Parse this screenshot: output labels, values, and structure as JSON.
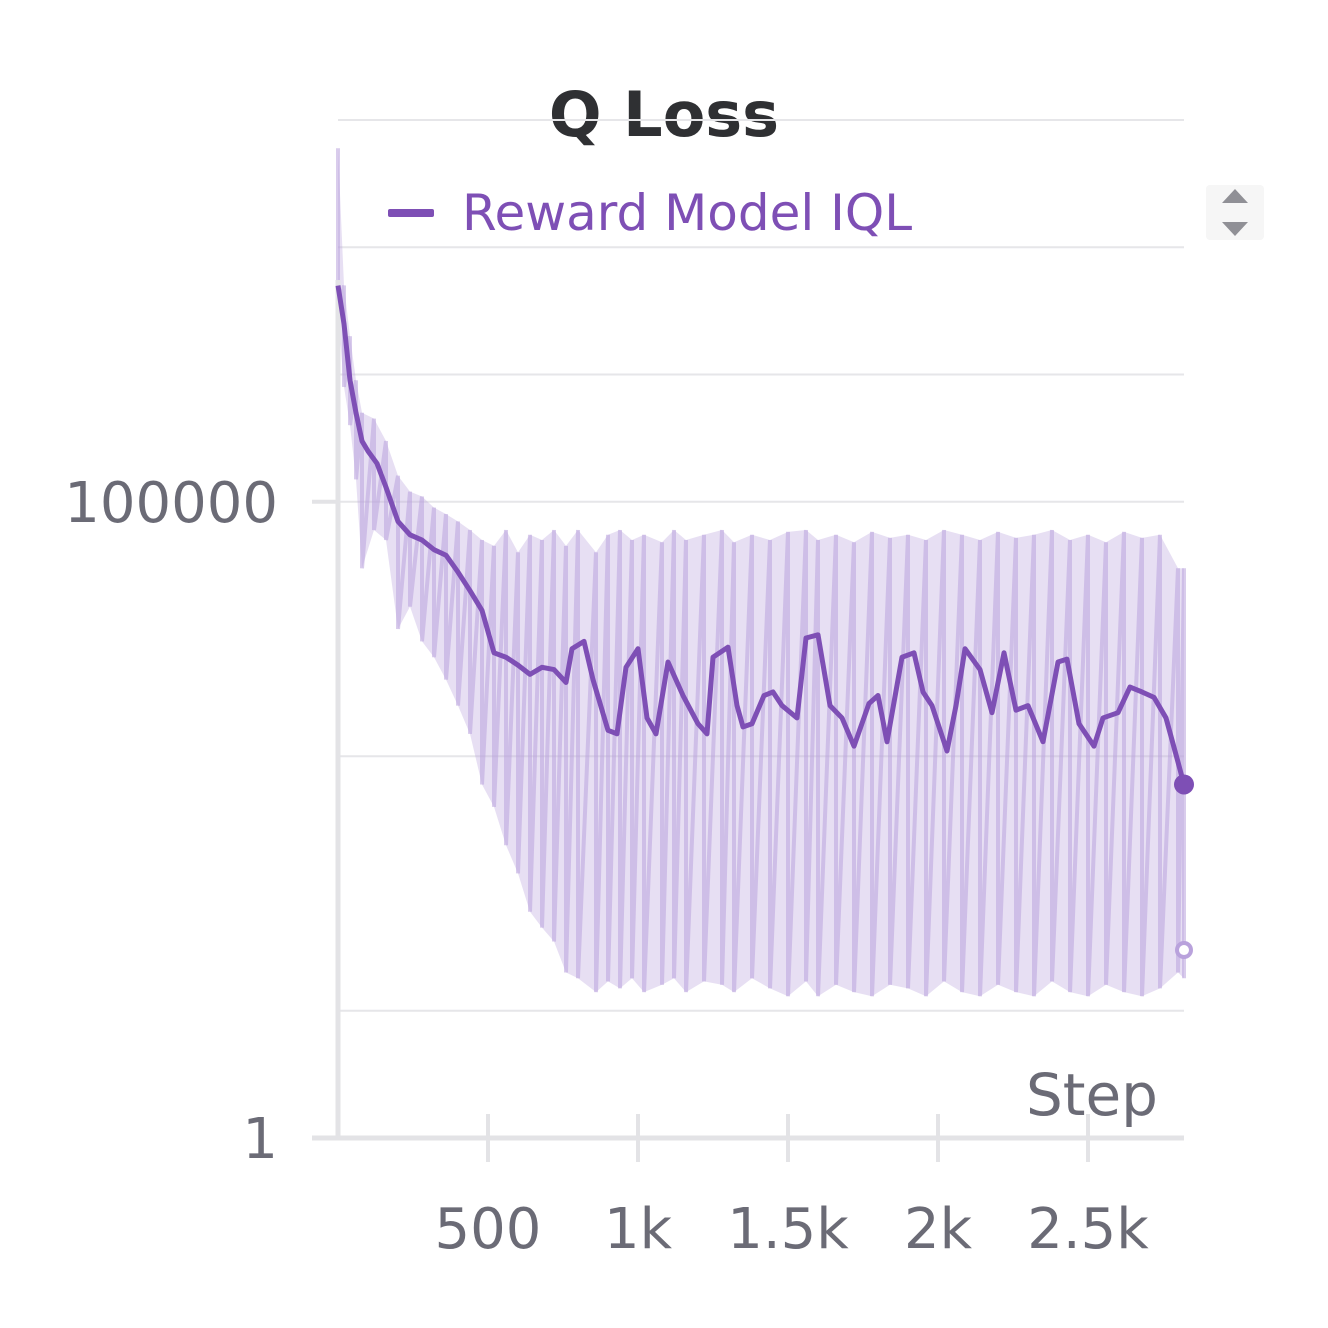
{
  "chart_data": {
    "type": "line",
    "title": "Q Loss",
    "xlabel": "Step",
    "ylabel": "",
    "yscale": "log",
    "xlim": [
      0,
      2820
    ],
    "ylim": [
      1,
      100000000
    ],
    "x_ticks": [
      {
        "value": 500,
        "label": "500"
      },
      {
        "value": 1000,
        "label": "1k"
      },
      {
        "value": 1500,
        "label": "1.5k"
      },
      {
        "value": 2000,
        "label": "2k"
      },
      {
        "value": 2500,
        "label": "2.5k"
      }
    ],
    "y_ticks": [
      {
        "value": 1,
        "label": "1"
      },
      {
        "value": 100000,
        "label": "100000"
      }
    ],
    "gridlines_log10": [
      1,
      3,
      5,
      6,
      7,
      8
    ],
    "legend": {
      "position": "top",
      "entries": [
        "Reward Model IQL"
      ]
    },
    "series": [
      {
        "name": "Reward Model IQL",
        "color": "#7e4fb5",
        "raw_color": "#b9a2dc",
        "smoothed": [
          {
            "x": 0,
            "y": 5000000
          },
          {
            "x": 20,
            "y": 2500000
          },
          {
            "x": 40,
            "y": 900000
          },
          {
            "x": 60,
            "y": 500000
          },
          {
            "x": 80,
            "y": 300000
          },
          {
            "x": 100,
            "y": 250000
          },
          {
            "x": 130,
            "y": 200000
          },
          {
            "x": 160,
            "y": 130000
          },
          {
            "x": 200,
            "y": 70000
          },
          {
            "x": 240,
            "y": 55000
          },
          {
            "x": 280,
            "y": 50000
          },
          {
            "x": 320,
            "y": 42000
          },
          {
            "x": 360,
            "y": 38000
          },
          {
            "x": 400,
            "y": 28000
          },
          {
            "x": 440,
            "y": 20000
          },
          {
            "x": 480,
            "y": 14000
          },
          {
            "x": 520,
            "y": 6500
          },
          {
            "x": 560,
            "y": 6000
          },
          {
            "x": 600,
            "y": 5200
          },
          {
            "x": 640,
            "y": 4400
          },
          {
            "x": 680,
            "y": 5000
          },
          {
            "x": 720,
            "y": 4800
          },
          {
            "x": 760,
            "y": 3800
          },
          {
            "x": 780,
            "y": 7000
          },
          {
            "x": 820,
            "y": 8000
          },
          {
            "x": 850,
            "y": 4000
          },
          {
            "x": 900,
            "y": 1600
          },
          {
            "x": 930,
            "y": 1500
          },
          {
            "x": 960,
            "y": 5000
          },
          {
            "x": 1000,
            "y": 7000
          },
          {
            "x": 1030,
            "y": 2000
          },
          {
            "x": 1060,
            "y": 1500
          },
          {
            "x": 1100,
            "y": 5500
          },
          {
            "x": 1150,
            "y": 3000
          },
          {
            "x": 1200,
            "y": 1800
          },
          {
            "x": 1230,
            "y": 1500
          },
          {
            "x": 1250,
            "y": 6000
          },
          {
            "x": 1300,
            "y": 7200
          },
          {
            "x": 1330,
            "y": 2500
          },
          {
            "x": 1350,
            "y": 1700
          },
          {
            "x": 1380,
            "y": 1800
          },
          {
            "x": 1420,
            "y": 3000
          },
          {
            "x": 1450,
            "y": 3200
          },
          {
            "x": 1480,
            "y": 2500
          },
          {
            "x": 1530,
            "y": 2000
          },
          {
            "x": 1560,
            "y": 8500
          },
          {
            "x": 1600,
            "y": 9000
          },
          {
            "x": 1640,
            "y": 2500
          },
          {
            "x": 1680,
            "y": 2000
          },
          {
            "x": 1720,
            "y": 1200
          },
          {
            "x": 1770,
            "y": 2600
          },
          {
            "x": 1800,
            "y": 3000
          },
          {
            "x": 1830,
            "y": 1300
          },
          {
            "x": 1880,
            "y": 6000
          },
          {
            "x": 1920,
            "y": 6500
          },
          {
            "x": 1950,
            "y": 3200
          },
          {
            "x": 1980,
            "y": 2500
          },
          {
            "x": 2030,
            "y": 1100
          },
          {
            "x": 2060,
            "y": 2500
          },
          {
            "x": 2090,
            "y": 7000
          },
          {
            "x": 2140,
            "y": 4800
          },
          {
            "x": 2180,
            "y": 2200
          },
          {
            "x": 2220,
            "y": 6500
          },
          {
            "x": 2260,
            "y": 2300
          },
          {
            "x": 2300,
            "y": 2500
          },
          {
            "x": 2350,
            "y": 1300
          },
          {
            "x": 2400,
            "y": 5500
          },
          {
            "x": 2430,
            "y": 5800
          },
          {
            "x": 2470,
            "y": 1800
          },
          {
            "x": 2520,
            "y": 1200
          },
          {
            "x": 2550,
            "y": 2000
          },
          {
            "x": 2600,
            "y": 2200
          },
          {
            "x": 2640,
            "y": 3500
          },
          {
            "x": 2680,
            "y": 3200
          },
          {
            "x": 2720,
            "y": 2900
          },
          {
            "x": 2760,
            "y": 2000
          },
          {
            "x": 2800,
            "y": 900
          },
          {
            "x": 2820,
            "y": 600
          }
        ],
        "raw_lower": [
          {
            "x": 0,
            "y": 3000000
          },
          {
            "x": 20,
            "y": 800000
          },
          {
            "x": 40,
            "y": 400000
          },
          {
            "x": 60,
            "y": 150000
          },
          {
            "x": 80,
            "y": 30000
          },
          {
            "x": 120,
            "y": 60000
          },
          {
            "x": 160,
            "y": 50000
          },
          {
            "x": 200,
            "y": 10000
          },
          {
            "x": 240,
            "y": 15000
          },
          {
            "x": 280,
            "y": 8000
          },
          {
            "x": 320,
            "y": 6000
          },
          {
            "x": 360,
            "y": 4000
          },
          {
            "x": 400,
            "y": 2500
          },
          {
            "x": 440,
            "y": 1500
          },
          {
            "x": 480,
            "y": 600
          },
          {
            "x": 520,
            "y": 400
          },
          {
            "x": 560,
            "y": 200
          },
          {
            "x": 600,
            "y": 120
          },
          {
            "x": 640,
            "y": 60
          },
          {
            "x": 680,
            "y": 45
          },
          {
            "x": 720,
            "y": 35
          },
          {
            "x": 760,
            "y": 20
          },
          {
            "x": 800,
            "y": 18
          },
          {
            "x": 860,
            "y": 14
          },
          {
            "x": 900,
            "y": 17
          },
          {
            "x": 940,
            "y": 15
          },
          {
            "x": 980,
            "y": 18
          },
          {
            "x": 1020,
            "y": 14
          },
          {
            "x": 1080,
            "y": 16
          },
          {
            "x": 1120,
            "y": 18
          },
          {
            "x": 1160,
            "y": 14
          },
          {
            "x": 1220,
            "y": 17
          },
          {
            "x": 1280,
            "y": 16
          },
          {
            "x": 1320,
            "y": 14
          },
          {
            "x": 1380,
            "y": 18
          },
          {
            "x": 1440,
            "y": 15
          },
          {
            "x": 1500,
            "y": 13
          },
          {
            "x": 1560,
            "y": 17
          },
          {
            "x": 1600,
            "y": 13
          },
          {
            "x": 1660,
            "y": 16
          },
          {
            "x": 1720,
            "y": 14
          },
          {
            "x": 1780,
            "y": 13
          },
          {
            "x": 1840,
            "y": 16
          },
          {
            "x": 1900,
            "y": 15
          },
          {
            "x": 1960,
            "y": 13
          },
          {
            "x": 2020,
            "y": 17
          },
          {
            "x": 2080,
            "y": 14
          },
          {
            "x": 2140,
            "y": 13
          },
          {
            "x": 2200,
            "y": 16
          },
          {
            "x": 2260,
            "y": 14
          },
          {
            "x": 2320,
            "y": 13
          },
          {
            "x": 2380,
            "y": 17
          },
          {
            "x": 2440,
            "y": 14
          },
          {
            "x": 2500,
            "y": 13
          },
          {
            "x": 2560,
            "y": 16
          },
          {
            "x": 2620,
            "y": 14
          },
          {
            "x": 2680,
            "y": 13
          },
          {
            "x": 2740,
            "y": 15
          },
          {
            "x": 2800,
            "y": 20
          },
          {
            "x": 2820,
            "y": 18
          }
        ],
        "raw_upper": [
          {
            "x": 0,
            "y": 60000000
          },
          {
            "x": 20,
            "y": 5000000
          },
          {
            "x": 40,
            "y": 2000000
          },
          {
            "x": 60,
            "y": 900000
          },
          {
            "x": 80,
            "y": 500000
          },
          {
            "x": 120,
            "y": 450000
          },
          {
            "x": 160,
            "y": 300000
          },
          {
            "x": 200,
            "y": 160000
          },
          {
            "x": 240,
            "y": 120000
          },
          {
            "x": 280,
            "y": 110000
          },
          {
            "x": 320,
            "y": 90000
          },
          {
            "x": 360,
            "y": 80000
          },
          {
            "x": 400,
            "y": 70000
          },
          {
            "x": 440,
            "y": 60000
          },
          {
            "x": 480,
            "y": 50000
          },
          {
            "x": 520,
            "y": 45000
          },
          {
            "x": 560,
            "y": 60000
          },
          {
            "x": 600,
            "y": 40000
          },
          {
            "x": 640,
            "y": 55000
          },
          {
            "x": 680,
            "y": 50000
          },
          {
            "x": 720,
            "y": 60000
          },
          {
            "x": 760,
            "y": 45000
          },
          {
            "x": 800,
            "y": 60000
          },
          {
            "x": 860,
            "y": 40000
          },
          {
            "x": 900,
            "y": 55000
          },
          {
            "x": 940,
            "y": 60000
          },
          {
            "x": 980,
            "y": 50000
          },
          {
            "x": 1020,
            "y": 55000
          },
          {
            "x": 1080,
            "y": 48000
          },
          {
            "x": 1120,
            "y": 60000
          },
          {
            "x": 1160,
            "y": 50000
          },
          {
            "x": 1220,
            "y": 55000
          },
          {
            "x": 1280,
            "y": 60000
          },
          {
            "x": 1320,
            "y": 48000
          },
          {
            "x": 1380,
            "y": 55000
          },
          {
            "x": 1440,
            "y": 50000
          },
          {
            "x": 1500,
            "y": 58000
          },
          {
            "x": 1560,
            "y": 60000
          },
          {
            "x": 1600,
            "y": 50000
          },
          {
            "x": 1660,
            "y": 55000
          },
          {
            "x": 1720,
            "y": 48000
          },
          {
            "x": 1780,
            "y": 58000
          },
          {
            "x": 1840,
            "y": 52000
          },
          {
            "x": 1900,
            "y": 55000
          },
          {
            "x": 1960,
            "y": 50000
          },
          {
            "x": 2020,
            "y": 60000
          },
          {
            "x": 2080,
            "y": 55000
          },
          {
            "x": 2140,
            "y": 50000
          },
          {
            "x": 2200,
            "y": 58000
          },
          {
            "x": 2260,
            "y": 52000
          },
          {
            "x": 2320,
            "y": 55000
          },
          {
            "x": 2380,
            "y": 60000
          },
          {
            "x": 2440,
            "y": 50000
          },
          {
            "x": 2500,
            "y": 55000
          },
          {
            "x": 2560,
            "y": 48000
          },
          {
            "x": 2620,
            "y": 58000
          },
          {
            "x": 2680,
            "y": 52000
          },
          {
            "x": 2740,
            "y": 55000
          },
          {
            "x": 2800,
            "y": 30000
          },
          {
            "x": 2820,
            "y": 30000
          }
        ],
        "last_smoothed": {
          "x": 2820,
          "y": 600
        },
        "last_raw": {
          "x": 2820,
          "y": 30
        }
      }
    ]
  }
}
